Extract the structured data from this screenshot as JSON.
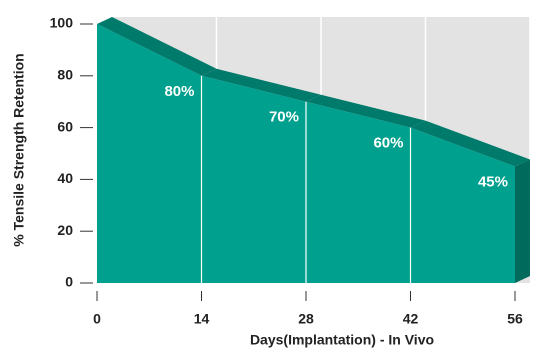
{
  "chart_data": {
    "type": "area",
    "x_label": "Days(Implantation) - In Vivo",
    "y_label": "% Tensile Strength Retention",
    "x": [
      0,
      14,
      28,
      42,
      56
    ],
    "values": [
      100,
      80,
      70,
      60,
      45
    ],
    "value_labels": [
      null,
      "80%",
      "70%",
      "60%",
      "45%"
    ],
    "color": "#00a08e",
    "xlim": [
      0,
      56
    ],
    "ylim": [
      0,
      100
    ],
    "xticks": [
      0,
      14,
      28,
      42,
      56
    ],
    "yticks": [
      0,
      20,
      40,
      60,
      80,
      100
    ],
    "grid": true
  }
}
